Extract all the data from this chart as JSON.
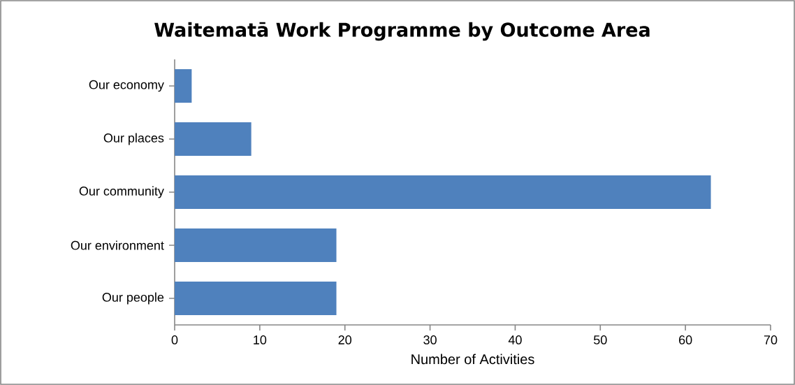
{
  "chart_data": {
    "type": "bar",
    "orientation": "horizontal",
    "title": "Waitematā Work Programme by Outcome Area",
    "xlabel": "Number of Activities",
    "categories": [
      "Our economy",
      "Our places",
      "Our community",
      "Our environment",
      "Our people"
    ],
    "values": [
      2,
      9,
      63,
      19,
      19
    ],
    "color": "#4f81bd",
    "xlim": [
      0,
      70
    ],
    "xticks": [
      0,
      10,
      20,
      30,
      40,
      50,
      60,
      70
    ]
  }
}
